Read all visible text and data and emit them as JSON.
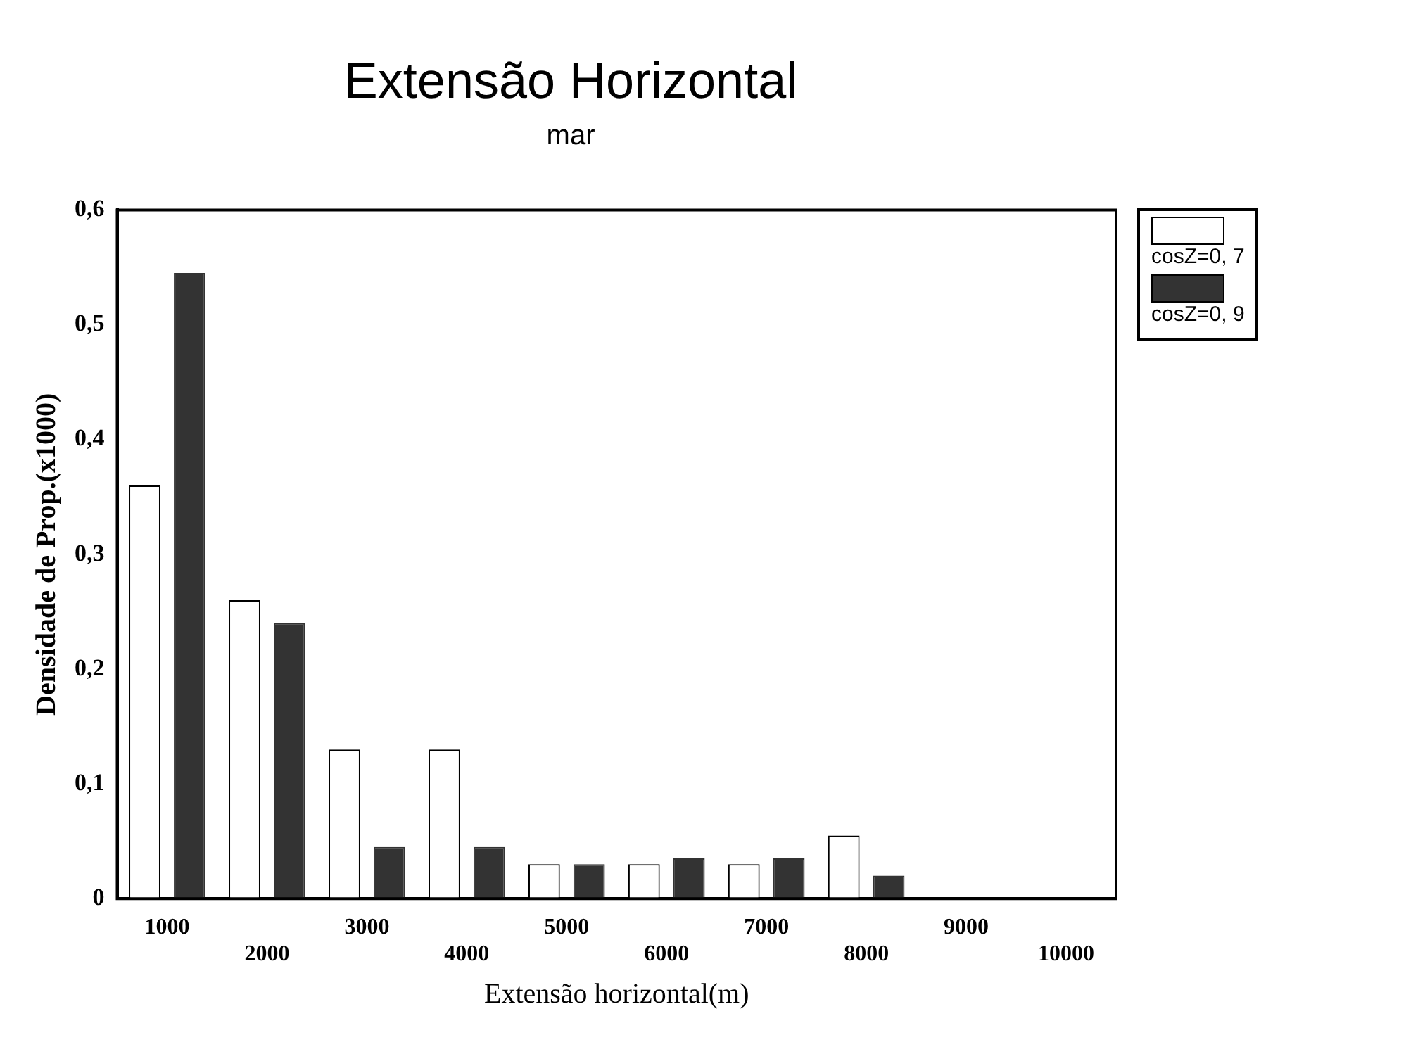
{
  "chart_data": {
    "type": "bar",
    "title": "Extensão Horizontal",
    "subtitle": "mar",
    "xlabel": "Extensão horizontal(m)",
    "ylabel": "Densidade de Prop.(x1000)",
    "categories": [
      "1000",
      "2000",
      "3000",
      "4000",
      "5000",
      "6000",
      "7000",
      "8000",
      "9000",
      "10000"
    ],
    "series": [
      {
        "name": "cosZ=0, 7",
        "color": "#ffffff",
        "values": [
          0.36,
          0.26,
          0.13,
          0.13,
          0.03,
          0.03,
          0.03,
          0.055,
          0,
          0
        ]
      },
      {
        "name": "cosZ=0, 9",
        "color": "#333333",
        "values": [
          0.545,
          0.24,
          0.045,
          0.045,
          0.03,
          0.035,
          0.035,
          0.02,
          0,
          0
        ]
      }
    ],
    "ylim": [
      0,
      0.6
    ],
    "yticks": [
      {
        "value": 0,
        "label": "0"
      },
      {
        "value": 0.1,
        "label": "0,1"
      },
      {
        "value": 0.2,
        "label": "0,2"
      },
      {
        "value": 0.3,
        "label": "0,3"
      },
      {
        "value": 0.4,
        "label": "0,4"
      },
      {
        "value": 0.5,
        "label": "0,5"
      },
      {
        "value": 0.6,
        "label": "0,6"
      }
    ],
    "grid": false,
    "legend": "right"
  }
}
